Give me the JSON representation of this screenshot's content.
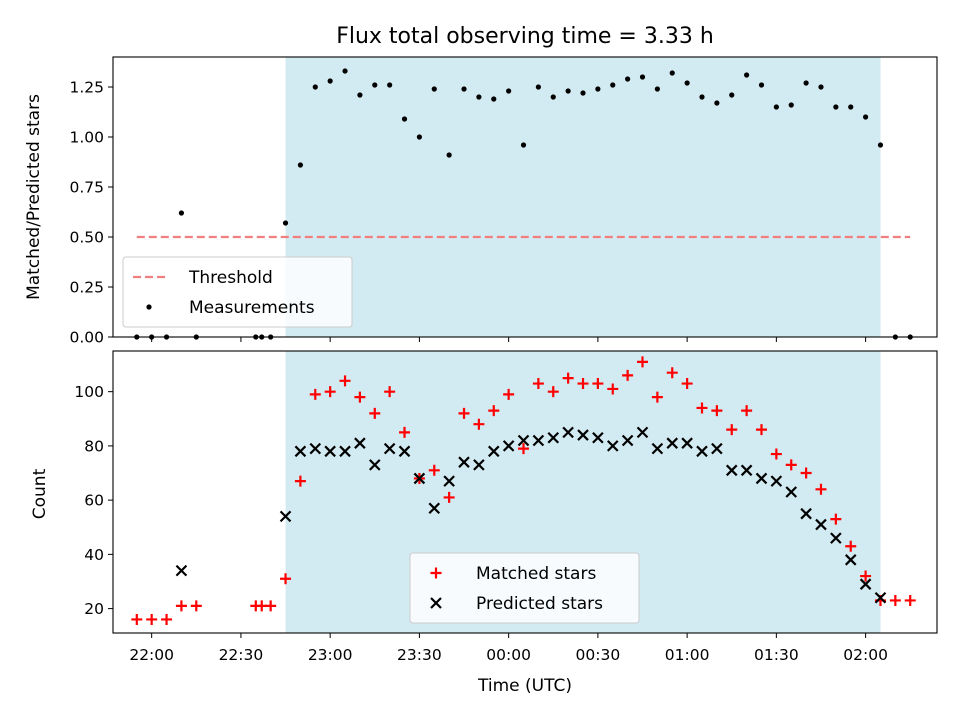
{
  "chart_data": {
    "title": "Flux total observing time = 3.33 h",
    "shaded_span": [
      "22:45",
      "02:05"
    ],
    "shade_color": "#add8e6",
    "x_ticks": [
      "22:00",
      "22:30",
      "23:00",
      "23:30",
      "00:00",
      "00:30",
      "01:00",
      "01:30",
      "02:00"
    ],
    "xlabel": "Time (UTC)",
    "xlim": [
      "21:47",
      "02:24"
    ],
    "panels": [
      {
        "type": "scatter",
        "ylabel": "Matched/Predicted stars",
        "ylim": [
          0,
          1.4
        ],
        "y_ticks": [
          "0.00",
          "0.25",
          "0.50",
          "0.75",
          "1.00",
          "1.25"
        ],
        "legend_position": "lower-left",
        "threshold": {
          "name": "Threshold",
          "value": 0.5,
          "x_range": [
            "21:55",
            "02:15"
          ],
          "color": "#f08080"
        },
        "series": [
          {
            "name": "Measurements",
            "color": "#000000",
            "points": [
              [
                "21:55",
                0
              ],
              [
                "22:00",
                0
              ],
              [
                "22:05",
                0
              ],
              [
                "22:10",
                0.62
              ],
              [
                "22:15",
                0
              ],
              [
                "22:35",
                0
              ],
              [
                "22:37",
                0
              ],
              [
                "22:40",
                0
              ],
              [
                "22:45",
                0.57
              ],
              [
                "22:50",
                0.86
              ],
              [
                "22:55",
                1.25
              ],
              [
                "23:00",
                1.28
              ],
              [
                "23:05",
                1.33
              ],
              [
                "23:10",
                1.21
              ],
              [
                "23:15",
                1.26
              ],
              [
                "23:20",
                1.26
              ],
              [
                "23:25",
                1.09
              ],
              [
                "23:30",
                1.0
              ],
              [
                "23:35",
                1.24
              ],
              [
                "23:40",
                0.91
              ],
              [
                "23:45",
                1.24
              ],
              [
                "23:50",
                1.2
              ],
              [
                "23:55",
                1.19
              ],
              [
                "00:00",
                1.23
              ],
              [
                "00:05",
                0.96
              ],
              [
                "00:10",
                1.25
              ],
              [
                "00:15",
                1.2
              ],
              [
                "00:20",
                1.23
              ],
              [
                "00:25",
                1.22
              ],
              [
                "00:30",
                1.24
              ],
              [
                "00:35",
                1.26
              ],
              [
                "00:40",
                1.29
              ],
              [
                "00:45",
                1.3
              ],
              [
                "00:50",
                1.24
              ],
              [
                "00:55",
                1.32
              ],
              [
                "01:00",
                1.27
              ],
              [
                "01:05",
                1.2
              ],
              [
                "01:10",
                1.17
              ],
              [
                "01:15",
                1.21
              ],
              [
                "01:20",
                1.31
              ],
              [
                "01:25",
                1.26
              ],
              [
                "01:30",
                1.15
              ],
              [
                "01:35",
                1.16
              ],
              [
                "01:40",
                1.27
              ],
              [
                "01:45",
                1.25
              ],
              [
                "01:50",
                1.15
              ],
              [
                "01:55",
                1.15
              ],
              [
                "02:00",
                1.1
              ],
              [
                "02:05",
                0.96
              ],
              [
                "02:10",
                0
              ],
              [
                "02:15",
                0
              ]
            ]
          }
        ]
      },
      {
        "type": "scatter",
        "ylabel": "Count",
        "ylim": [
          11,
          115
        ],
        "y_ticks": [
          "20",
          "40",
          "60",
          "80",
          "100"
        ],
        "legend_position": "lower-center",
        "series": [
          {
            "name": "Matched stars",
            "marker": "plus",
            "color": "#ff0000",
            "points": [
              [
                "21:55",
                16
              ],
              [
                "22:00",
                16
              ],
              [
                "22:05",
                16
              ],
              [
                "22:10",
                21
              ],
              [
                "22:15",
                21
              ],
              [
                "22:35",
                21
              ],
              [
                "22:37",
                21
              ],
              [
                "22:40",
                21
              ],
              [
                "22:45",
                31
              ],
              [
                "22:50",
                67
              ],
              [
                "22:55",
                99
              ],
              [
                "23:00",
                100
              ],
              [
                "23:05",
                104
              ],
              [
                "23:10",
                98
              ],
              [
                "23:15",
                92
              ],
              [
                "23:20",
                100
              ],
              [
                "23:25",
                85
              ],
              [
                "23:30",
                68
              ],
              [
                "23:35",
                71
              ],
              [
                "23:40",
                61
              ],
              [
                "23:45",
                92
              ],
              [
                "23:50",
                88
              ],
              [
                "23:55",
                93
              ],
              [
                "00:00",
                99
              ],
              [
                "00:05",
                79
              ],
              [
                "00:10",
                103
              ],
              [
                "00:15",
                100
              ],
              [
                "00:20",
                105
              ],
              [
                "00:25",
                103
              ],
              [
                "00:30",
                103
              ],
              [
                "00:35",
                101
              ],
              [
                "00:40",
                106
              ],
              [
                "00:45",
                111
              ],
              [
                "00:50",
                98
              ],
              [
                "00:55",
                107
              ],
              [
                "01:00",
                103
              ],
              [
                "01:05",
                94
              ],
              [
                "01:10",
                93
              ],
              [
                "01:15",
                86
              ],
              [
                "01:20",
                93
              ],
              [
                "01:25",
                86
              ],
              [
                "01:30",
                77
              ],
              [
                "01:35",
                73
              ],
              [
                "01:40",
                70
              ],
              [
                "01:45",
                64
              ],
              [
                "01:50",
                53
              ],
              [
                "01:55",
                43
              ],
              [
                "02:00",
                32
              ],
              [
                "02:05",
                23
              ],
              [
                "02:10",
                23
              ],
              [
                "02:15",
                23
              ]
            ]
          },
          {
            "name": "Predicted stars",
            "marker": "x",
            "color": "#000000",
            "points": [
              [
                "22:10",
                34
              ],
              [
                "22:45",
                54
              ],
              [
                "22:50",
                78
              ],
              [
                "22:55",
                79
              ],
              [
                "23:00",
                78
              ],
              [
                "23:05",
                78
              ],
              [
                "23:10",
                81
              ],
              [
                "23:15",
                73
              ],
              [
                "23:20",
                79
              ],
              [
                "23:25",
                78
              ],
              [
                "23:30",
                68
              ],
              [
                "23:35",
                57
              ],
              [
                "23:40",
                67
              ],
              [
                "23:45",
                74
              ],
              [
                "23:50",
                73
              ],
              [
                "23:55",
                78
              ],
              [
                "00:00",
                80
              ],
              [
                "00:05",
                82
              ],
              [
                "00:10",
                82
              ],
              [
                "00:15",
                83
              ],
              [
                "00:20",
                85
              ],
              [
                "00:25",
                84
              ],
              [
                "00:30",
                83
              ],
              [
                "00:35",
                80
              ],
              [
                "00:40",
                82
              ],
              [
                "00:45",
                85
              ],
              [
                "00:50",
                79
              ],
              [
                "00:55",
                81
              ],
              [
                "01:00",
                81
              ],
              [
                "01:05",
                78
              ],
              [
                "01:10",
                79
              ],
              [
                "01:15",
                71
              ],
              [
                "01:20",
                71
              ],
              [
                "01:25",
                68
              ],
              [
                "01:30",
                67
              ],
              [
                "01:35",
                63
              ],
              [
                "01:40",
                55
              ],
              [
                "01:45",
                51
              ],
              [
                "01:50",
                46
              ],
              [
                "01:55",
                38
              ],
              [
                "02:00",
                29
              ],
              [
                "02:05",
                24
              ]
            ]
          }
        ]
      }
    ]
  }
}
